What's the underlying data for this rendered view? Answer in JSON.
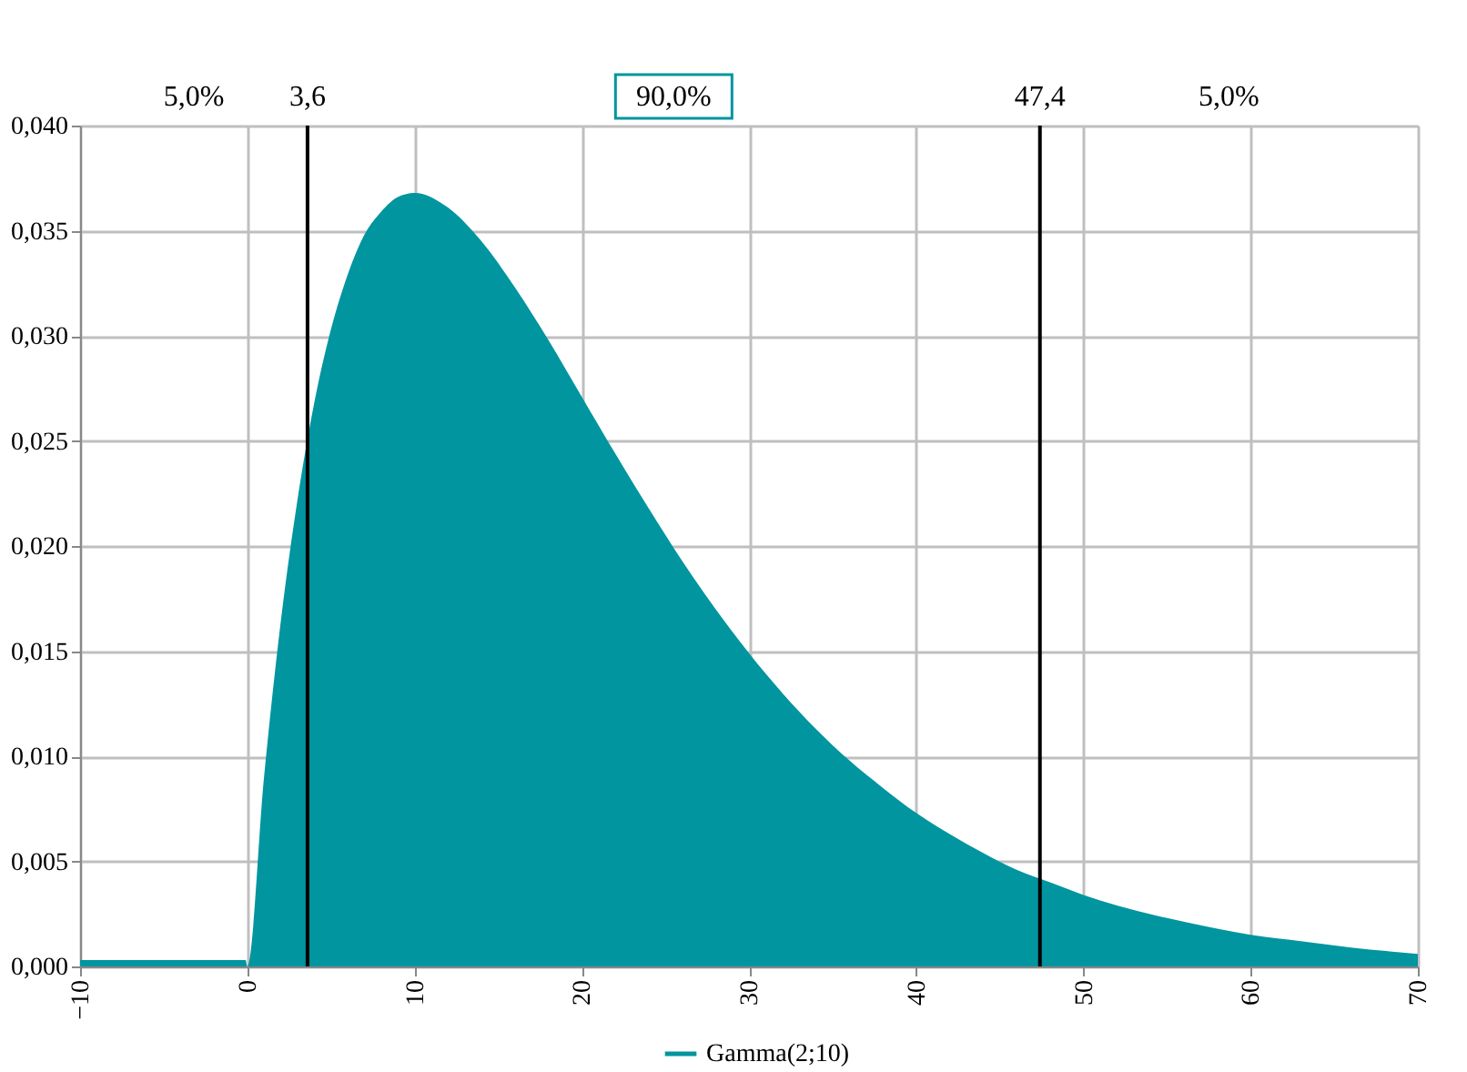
{
  "chart_data": {
    "type": "area",
    "series": [
      {
        "name": "Gamma(2;10)",
        "color": "#00959f",
        "x": [
          -10,
          -0.1,
          0,
          1,
          2,
          3,
          4,
          5,
          6,
          7,
          8,
          9,
          10,
          12,
          14,
          16,
          18,
          20,
          22,
          24,
          26,
          28,
          30,
          32,
          34,
          36,
          38,
          40,
          42,
          44,
          46,
          48,
          50,
          52,
          55,
          58,
          60,
          63,
          66,
          70
        ],
        "values": [
          0.0003,
          0.0003,
          0,
          0.009,
          0.0164,
          0.0222,
          0.0268,
          0.0303,
          0.0329,
          0.0348,
          0.0359,
          0.0366,
          0.0368,
          0.0361,
          0.0345,
          0.0323,
          0.0298,
          0.0271,
          0.0244,
          0.0218,
          0.0193,
          0.017,
          0.0149,
          0.013,
          0.0113,
          0.0098,
          0.0085,
          0.0073,
          0.0063,
          0.0054,
          0.0046,
          0.004,
          0.0034,
          0.0029,
          0.0023,
          0.0018,
          0.0015,
          0.0012,
          0.0009,
          0.0006
        ]
      }
    ],
    "xlim": [
      -10,
      70
    ],
    "xticks": [
      -10,
      0,
      10,
      20,
      30,
      40,
      50,
      60,
      70
    ],
    "ylim": [
      0,
      0.04
    ],
    "yticks": [
      {
        "value": 0,
        "label": "0,000"
      },
      {
        "value": 0.005,
        "label": "0,005"
      },
      {
        "value": 0.01,
        "label": "0,010"
      },
      {
        "value": 0.015,
        "label": "0,015"
      },
      {
        "value": 0.02,
        "label": "0,020"
      },
      {
        "value": 0.025,
        "label": "0,025"
      },
      {
        "value": 0.03,
        "label": "0,030"
      },
      {
        "value": 0.035,
        "label": "0,035"
      },
      {
        "value": 0.04,
        "label": "0,040"
      }
    ],
    "ref_lines": [
      {
        "axis": "x",
        "value": 3.6,
        "label": "3,6",
        "color": "#000000"
      },
      {
        "axis": "x",
        "value": 47.4,
        "label": "47,4",
        "color": "#000000"
      }
    ],
    "annotations": [
      "5,0%",
      "90,0%",
      "5,0%"
    ],
    "grid": true,
    "legend": "bottom"
  }
}
